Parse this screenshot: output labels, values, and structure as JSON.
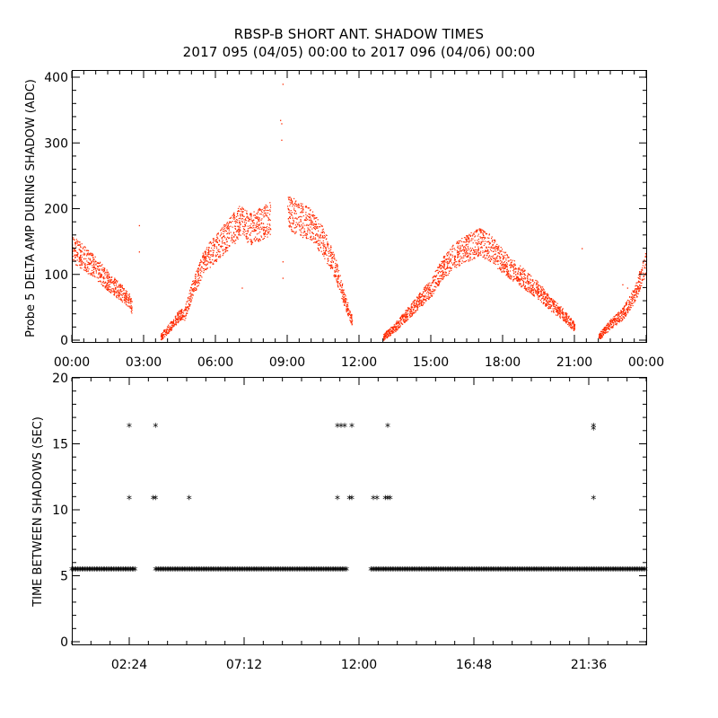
{
  "title": {
    "line1": "RBSP-B SHORT ANT. SHADOW TIMES",
    "line2": "2017 095 (04/05) 00:00 to 2017 096 (04/06) 00:00"
  },
  "colors": {
    "amp_points": "#ff2a00",
    "marks": "#000000"
  },
  "chart_data": [
    {
      "type": "scatter",
      "ylabel": "Probe 5 DELTA AMP DURING SHADOW (ADC)",
      "xlim": [
        "00:00",
        "00:00"
      ],
      "ylim": [
        0,
        400
      ],
      "x_tick_labels": [
        "00:00",
        "03:00",
        "06:00",
        "09:00",
        "12:00",
        "15:00",
        "18:00",
        "21:00",
        "00:00"
      ],
      "y_tick_labels": [
        "0",
        "100",
        "200",
        "300",
        "400"
      ],
      "envelope_hours": [
        0.0,
        0.5,
        1.0,
        1.5,
        2.0,
        2.4,
        2.5,
        3.3,
        3.7,
        4.2,
        4.5,
        4.7,
        5.0,
        5.5,
        6.0,
        6.5,
        7.0,
        7.5,
        8.0,
        8.3,
        8.6,
        9.0,
        9.5,
        10.0,
        10.5,
        11.0,
        11.4,
        11.7,
        12.0,
        12.4,
        13.0,
        13.5,
        14.0,
        14.5,
        15.0,
        15.5,
        16.0,
        16.5,
        17.0,
        17.5,
        18.0,
        18.5,
        19.0,
        19.5,
        20.0,
        20.5,
        21.0,
        21.5,
        21.8,
        22.0,
        22.5,
        23.0,
        23.5,
        24.0
      ],
      "envelope_values": [
        140,
        125,
        110,
        90,
        75,
        60,
        50,
        null,
        5,
        25,
        40,
        40,
        75,
        120,
        140,
        160,
        180,
        170,
        180,
        185,
        null,
        195,
        185,
        175,
        150,
        110,
        60,
        30,
        null,
        null,
        5,
        20,
        40,
        60,
        80,
        110,
        130,
        140,
        150,
        140,
        120,
        105,
        90,
        75,
        55,
        40,
        20,
        null,
        null,
        5,
        25,
        40,
        70,
        120
      ],
      "envelope_spread": 35,
      "outliers": [
        {
          "x": 2.8,
          "y": 175
        },
        {
          "x": 2.8,
          "y": 135
        },
        {
          "x": 8.7,
          "y": 335
        },
        {
          "x": 8.75,
          "y": 330
        },
        {
          "x": 8.75,
          "y": 305
        },
        {
          "x": 8.8,
          "y": 390
        },
        {
          "x": 8.8,
          "y": 95
        },
        {
          "x": 8.8,
          "y": 120
        },
        {
          "x": 21.3,
          "y": 140
        },
        {
          "x": 23.0,
          "y": 85
        },
        {
          "x": 23.2,
          "y": 80
        },
        {
          "x": 7.1,
          "y": 80
        }
      ]
    },
    {
      "type": "scatter",
      "ylabel": "TIME BETWEEN SHADOWS (SEC)",
      "xlim_hours": [
        0,
        24
      ],
      "ylim": [
        0,
        20
      ],
      "x_tick_labels": [
        "02:24",
        "07:12",
        "12:00",
        "16:48",
        "21:36"
      ],
      "y_tick_labels": [
        "0",
        "5",
        "10",
        "15",
        "20"
      ],
      "baseline_value": 5.4,
      "baseline_segments": [
        [
          0.0,
          2.7
        ],
        [
          3.5,
          11.5
        ],
        [
          12.5,
          24.0
        ]
      ],
      "points": [
        {
          "x": 2.4,
          "y": 16.3
        },
        {
          "x": 2.4,
          "y": 10.8
        },
        {
          "x": 3.5,
          "y": 16.3
        },
        {
          "x": 3.5,
          "y": 10.8
        },
        {
          "x": 3.4,
          "y": 10.8
        },
        {
          "x": 4.9,
          "y": 10.8
        },
        {
          "x": 11.1,
          "y": 16.3
        },
        {
          "x": 11.25,
          "y": 16.3
        },
        {
          "x": 11.4,
          "y": 16.3
        },
        {
          "x": 11.7,
          "y": 16.3
        },
        {
          "x": 11.1,
          "y": 10.8
        },
        {
          "x": 11.6,
          "y": 10.8
        },
        {
          "x": 11.7,
          "y": 10.8
        },
        {
          "x": 13.2,
          "y": 16.3
        },
        {
          "x": 12.6,
          "y": 10.8
        },
        {
          "x": 12.75,
          "y": 10.8
        },
        {
          "x": 13.1,
          "y": 10.8
        },
        {
          "x": 13.2,
          "y": 10.8
        },
        {
          "x": 13.3,
          "y": 10.8
        },
        {
          "x": 21.8,
          "y": 16.3
        },
        {
          "x": 21.8,
          "y": 16.1
        },
        {
          "x": 21.8,
          "y": 10.8
        }
      ]
    }
  ]
}
